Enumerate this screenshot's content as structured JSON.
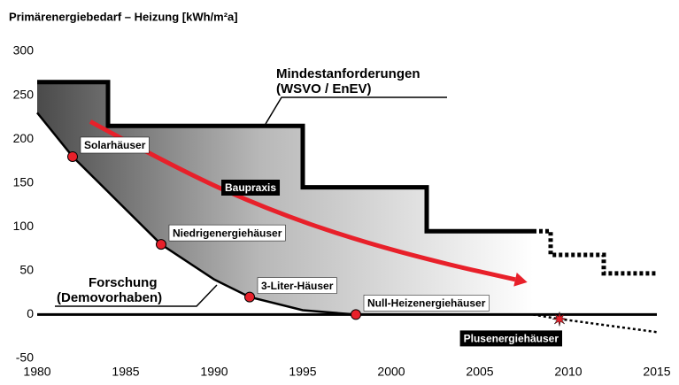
{
  "chart_data": {
    "type": "line",
    "title": "Primärenergiebedarf – Heizung [kWh/m²a]",
    "xlim": [
      1980,
      2015
    ],
    "xticks": [
      1980,
      1985,
      1990,
      1995,
      2000,
      2005,
      2010,
      2015
    ],
    "ylim": [
      -50,
      300
    ],
    "yticks": [
      -50,
      0,
      50,
      100,
      150,
      200,
      250,
      300
    ],
    "requirements": {
      "label": [
        "Mindestanforderungen",
        "(WSVO / EnEV)"
      ],
      "x": [
        1980,
        1984,
        1984,
        1995,
        1995,
        2002,
        2002,
        2009,
        2009,
        2012,
        2012,
        2015
      ],
      "values": [
        265,
        265,
        215,
        215,
        145,
        145,
        95,
        95,
        68,
        68,
        47,
        47
      ],
      "dashed_from": 2008,
      "color": "#000000"
    },
    "practice_label": "Baupraxis",
    "research": {
      "label": [
        "Forschung",
        "(Demovorhaben)"
      ],
      "x": [
        1980,
        1982,
        1984,
        1987,
        1990,
        1992,
        1995,
        1998
      ],
      "values": [
        230,
        180,
        140,
        80,
        40,
        20,
        5,
        0
      ],
      "color": "#000000"
    },
    "outlook": {
      "x": [
        2008,
        2009.5,
        2015
      ],
      "values": [
        0,
        -5,
        -20
      ]
    },
    "points": [
      {
        "label": "Solarhäuser",
        "x": 1982,
        "value": 180
      },
      {
        "label": "Niedrigenergiehäuser",
        "x": 1987,
        "value": 80
      },
      {
        "label": "3-Liter-Häuser",
        "x": 1992,
        "value": 20
      },
      {
        "label": "Null-Heizenergiehäuser",
        "x": 1998,
        "value": 0
      },
      {
        "label": "Plusenergiehäuser",
        "x": 2009.5,
        "value": -5
      }
    ],
    "point_color": "#e8202a",
    "trend": {
      "x": [
        1983,
        1988,
        1993,
        1998,
        2003,
        2007
      ],
      "values": [
        220,
        165,
        120,
        85,
        58,
        40
      ],
      "color": "#e8202a"
    }
  }
}
